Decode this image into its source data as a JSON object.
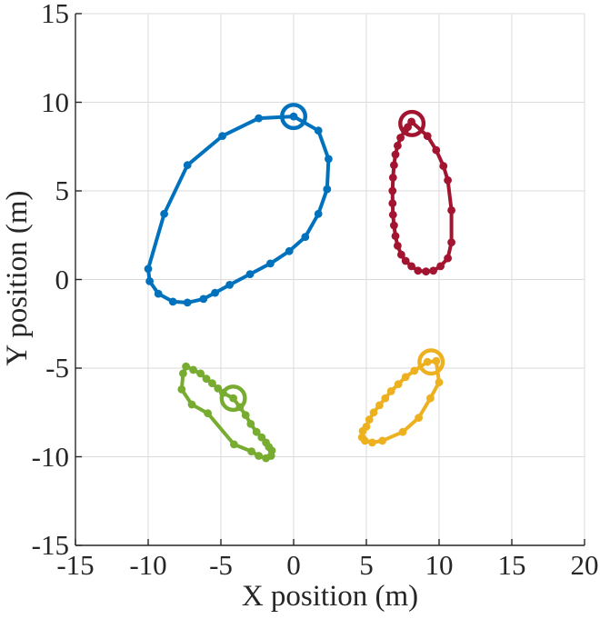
{
  "chart_data": {
    "type": "line",
    "title": "",
    "xlabel": "X position (m)",
    "ylabel": "Y position (m)",
    "xlim": [
      -15,
      20
    ],
    "ylim": [
      -15,
      15
    ],
    "xticks": [
      -15,
      -10,
      -5,
      0,
      5,
      10,
      15,
      20
    ],
    "yticks": [
      -15,
      -10,
      -5,
      0,
      5,
      10,
      15
    ],
    "grid": true,
    "legend": "none",
    "grid_color": "#dbdbdb",
    "axis_color": "#262626",
    "background": "#ffffff",
    "line_width": 4,
    "waypoint_marker": "filled-dot",
    "current_marker": "open-circle",
    "series": [
      {
        "name": "blue",
        "color": "#0072BD",
        "current": [
          0.0,
          9.2
        ],
        "points": [
          [
            0.0,
            9.2
          ],
          [
            -2.4,
            9.1
          ],
          [
            -4.9,
            8.1
          ],
          [
            -7.3,
            6.45
          ],
          [
            -8.9,
            3.7
          ],
          [
            -10.0,
            0.6
          ],
          [
            -9.9,
            -0.1
          ],
          [
            -9.3,
            -0.8
          ],
          [
            -8.3,
            -1.25
          ],
          [
            -7.3,
            -1.3
          ],
          [
            -6.2,
            -1.1
          ],
          [
            -5.4,
            -0.75
          ],
          [
            -4.4,
            -0.3
          ],
          [
            -3.0,
            0.3
          ],
          [
            -1.6,
            0.9
          ],
          [
            -0.3,
            1.6
          ],
          [
            0.8,
            2.4
          ],
          [
            1.7,
            3.7
          ],
          [
            2.3,
            5.1
          ],
          [
            2.4,
            6.8
          ],
          [
            1.7,
            8.4
          ]
        ]
      },
      {
        "name": "dark-red",
        "color": "#A2142F",
        "current": [
          8.13,
          8.8
        ],
        "points": [
          [
            8.1,
            8.9
          ],
          [
            9.2,
            8.1
          ],
          [
            9.8,
            7.3
          ],
          [
            10.3,
            6.4
          ],
          [
            10.6,
            5.6
          ],
          [
            10.85,
            3.9
          ],
          [
            10.85,
            2.1
          ],
          [
            10.6,
            1.2
          ],
          [
            10.1,
            0.75
          ],
          [
            9.6,
            0.5
          ],
          [
            9.1,
            0.45
          ],
          [
            8.55,
            0.5
          ],
          [
            8.1,
            0.75
          ],
          [
            7.7,
            1.05
          ],
          [
            7.4,
            1.4
          ],
          [
            7.15,
            1.9
          ],
          [
            7.0,
            2.45
          ],
          [
            6.9,
            3.05
          ],
          [
            6.83,
            3.65
          ],
          [
            6.8,
            4.3
          ],
          [
            6.8,
            5.0
          ],
          [
            6.83,
            5.75
          ],
          [
            6.9,
            6.45
          ],
          [
            7.0,
            7.05
          ],
          [
            7.15,
            7.55
          ],
          [
            7.35,
            8.0
          ],
          [
            7.65,
            8.4
          ],
          [
            7.85,
            8.6
          ]
        ]
      },
      {
        "name": "green",
        "color": "#77AC30",
        "current": [
          -4.15,
          -6.7
        ],
        "points": [
          [
            -4.15,
            -6.7
          ],
          [
            -3.7,
            -7.2
          ],
          [
            -3.3,
            -7.65
          ],
          [
            -2.95,
            -8.15
          ],
          [
            -2.55,
            -8.6
          ],
          [
            -2.2,
            -8.9
          ],
          [
            -1.9,
            -9.2
          ],
          [
            -1.7,
            -9.45
          ],
          [
            -1.5,
            -9.65
          ],
          [
            -1.55,
            -9.95
          ],
          [
            -1.9,
            -10.08
          ],
          [
            -2.4,
            -9.95
          ],
          [
            -2.9,
            -9.7
          ],
          [
            -4.1,
            -9.3
          ],
          [
            -5.9,
            -7.55
          ],
          [
            -7.0,
            -7.05
          ],
          [
            -7.7,
            -6.2
          ],
          [
            -7.6,
            -5.3
          ],
          [
            -7.4,
            -4.9
          ],
          [
            -6.9,
            -5.1
          ],
          [
            -6.4,
            -5.3
          ],
          [
            -6.0,
            -5.6
          ],
          [
            -5.6,
            -5.85
          ],
          [
            -5.2,
            -6.15
          ],
          [
            -4.85,
            -6.4
          ]
        ]
      },
      {
        "name": "yellow",
        "color": "#EDB120",
        "current": [
          9.45,
          -4.65
        ],
        "points": [
          [
            9.8,
            -4.6
          ],
          [
            9.2,
            -4.65
          ],
          [
            8.3,
            -5.15
          ],
          [
            7.7,
            -5.5
          ],
          [
            7.2,
            -5.9
          ],
          [
            6.7,
            -6.3
          ],
          [
            6.3,
            -6.7
          ],
          [
            5.9,
            -7.1
          ],
          [
            5.5,
            -7.5
          ],
          [
            5.2,
            -7.9
          ],
          [
            5.0,
            -8.3
          ],
          [
            4.75,
            -8.55
          ],
          [
            4.7,
            -8.9
          ],
          [
            4.9,
            -9.1
          ],
          [
            5.4,
            -9.2
          ],
          [
            6.1,
            -9.1
          ],
          [
            7.5,
            -8.6
          ],
          [
            8.6,
            -7.8
          ],
          [
            9.4,
            -6.7
          ],
          [
            10.0,
            -5.8
          ]
        ]
      }
    ]
  }
}
